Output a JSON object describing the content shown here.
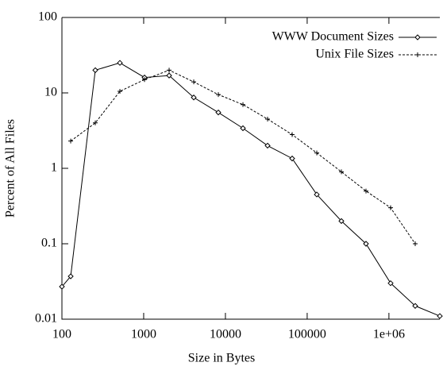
{
  "chart_data": {
    "type": "line",
    "xlabel": "Size in Bytes",
    "ylabel": "Percent of All Files",
    "xlog": true,
    "ylog": true,
    "legend": "upper right",
    "xlim": [
      100,
      4194304
    ],
    "ylim": [
      0.01,
      100
    ],
    "xticks": [
      100,
      1000,
      10000,
      100000,
      {
        "value": 1000000,
        "label": "1e+06"
      }
    ],
    "yticks": [
      0.01,
      0.1,
      1,
      10,
      100
    ],
    "series": [
      {
        "name": "WWW Document Sizes",
        "color": "#000000",
        "style": "solid",
        "marker": "diamond",
        "x": [
          100,
          128,
          256,
          512,
          1024,
          2048,
          4096,
          8192,
          16384,
          32768,
          65536,
          131072,
          262144,
          524288,
          1048576,
          2097152,
          4194304
        ],
        "values": [
          0.027,
          0.037,
          20,
          25,
          16,
          17,
          8.7,
          5.5,
          3.4,
          2,
          1.35,
          0.45,
          0.2,
          0.1,
          0.03,
          0.015,
          0.011
        ]
      },
      {
        "name": "Unix File Sizes",
        "color": "#000000",
        "style": "dashed",
        "marker": "plus",
        "x": [
          128,
          256,
          512,
          1024,
          2048,
          4096,
          8192,
          16384,
          32768,
          65536,
          131072,
          262144,
          524288,
          1048576,
          2097152
        ],
        "values": [
          2.3,
          4,
          10.5,
          15,
          20,
          14,
          9.5,
          7,
          4.5,
          2.8,
          1.6,
          0.9,
          0.5,
          0.3,
          0.1
        ]
      }
    ]
  }
}
